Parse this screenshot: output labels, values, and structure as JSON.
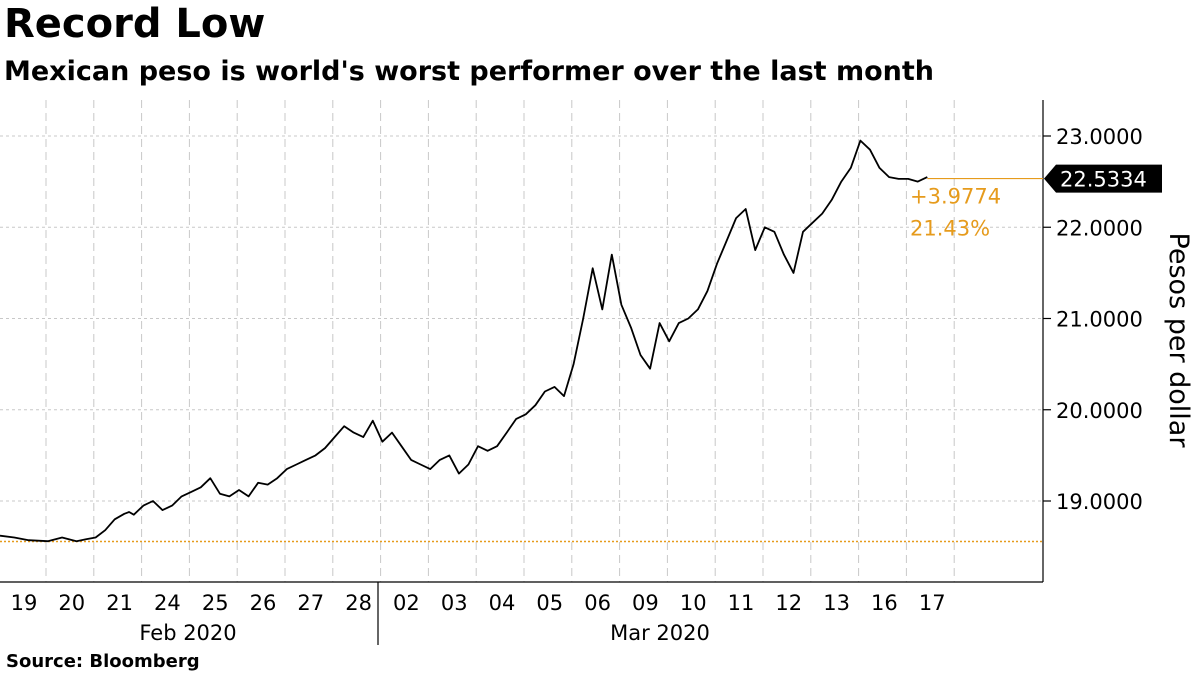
{
  "title": "Record Low",
  "subtitle": "Mexican peso is world's worst performer over the last month",
  "source": "Source: Bloomberg",
  "chart_data": {
    "type": "line",
    "ylabel": "Pesos per dollar",
    "ylim": [
      18.2,
      23.4
    ],
    "yticks": [
      "23.0000",
      "22.0000",
      "21.0000",
      "20.0000",
      "19.0000"
    ],
    "ytick_values": [
      23,
      22,
      21,
      20,
      19
    ],
    "x_day_labels": [
      "19",
      "20",
      "21",
      "24",
      "25",
      "26",
      "27",
      "28",
      "02",
      "03",
      "04",
      "05",
      "06",
      "09",
      "10",
      "11",
      "12",
      "13",
      "16",
      "17"
    ],
    "x_month_labels": [
      "Feb 2020",
      "Mar 2020"
    ],
    "grid": true,
    "series": [
      {
        "x": [
          0,
          0.3,
          0.6,
          1.0,
          1.3,
          1.6,
          1.8,
          2.0,
          2.2,
          2.4,
          2.6,
          2.7,
          2.8,
          2.9,
          3.0,
          3.2,
          3.4,
          3.6,
          3.8,
          4.0,
          4.2,
          4.4,
          4.6,
          4.8,
          5.0,
          5.2,
          5.4,
          5.6,
          5.8,
          6.0,
          6.2,
          6.4,
          6.6,
          6.8,
          7.0,
          7.2,
          7.4,
          7.6,
          7.8,
          8.0,
          8.2,
          8.4,
          8.6,
          8.8,
          9.0,
          9.2,
          9.4,
          9.6,
          9.8,
          10.0,
          10.2,
          10.4,
          10.6,
          10.8,
          11.0,
          11.2,
          11.4,
          11.6,
          11.8,
          12.0,
          12.2,
          12.4,
          12.6,
          12.8,
          13.0,
          13.2,
          13.4,
          13.6,
          13.8,
          14.0,
          14.2,
          14.4,
          14.6,
          14.8,
          15.0,
          15.2,
          15.4,
          15.6,
          15.8,
          16.0,
          16.2,
          16.4,
          16.6,
          16.8,
          17.0,
          17.2,
          17.4,
          17.6,
          17.8,
          18.0,
          18.2,
          18.4,
          18.6,
          18.8,
          19.0,
          19.2,
          19.4
        ],
        "values": [
          18.62,
          18.6,
          18.57,
          18.56,
          18.6,
          18.56,
          18.58,
          18.6,
          18.68,
          18.8,
          18.86,
          18.88,
          18.85,
          18.9,
          18.95,
          19.0,
          18.9,
          18.95,
          19.05,
          19.1,
          19.15,
          19.25,
          19.08,
          19.05,
          19.12,
          19.05,
          19.2,
          19.18,
          19.25,
          19.35,
          19.4,
          19.45,
          19.5,
          19.58,
          19.7,
          19.82,
          19.75,
          19.7,
          19.88,
          19.65,
          19.75,
          19.6,
          19.45,
          19.4,
          19.35,
          19.45,
          19.5,
          19.3,
          19.4,
          19.6,
          19.55,
          19.6,
          19.75,
          19.9,
          19.95,
          20.05,
          20.2,
          20.25,
          20.15,
          20.5,
          21.0,
          21.55,
          21.1,
          21.7,
          21.15,
          20.9,
          20.6,
          20.45,
          20.95,
          20.75,
          20.95,
          21.0,
          21.1,
          21.3,
          21.6,
          21.85,
          22.1,
          22.2,
          21.75,
          22.0,
          21.95,
          21.7,
          21.5,
          21.95,
          22.05,
          22.15,
          22.3,
          22.5,
          22.65,
          22.95,
          22.85,
          22.65,
          22.55,
          22.53,
          22.53,
          22.5,
          22.55
        ]
      }
    ],
    "reference_level": 18.556,
    "last_value_label": "22.5334",
    "last_value": 22.5334,
    "change_label": "+3.9774",
    "change_pct_label": "21.43%",
    "colors": {
      "line": "#000000",
      "accent": "#e69b1c",
      "grid": "#c8c8c8"
    }
  }
}
